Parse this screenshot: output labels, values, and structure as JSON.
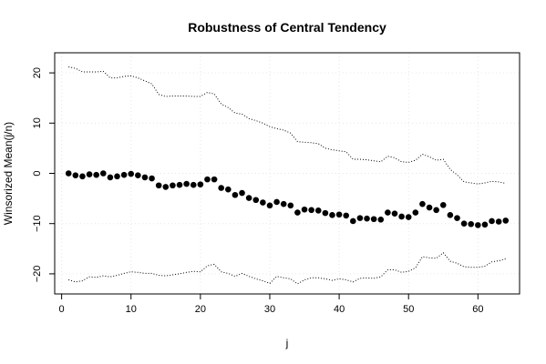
{
  "chart_data": {
    "type": "scatter",
    "title": "Robustness of Central Tendency",
    "xlabel": "j",
    "ylabel": "Winsorized Mean(j/n)",
    "xlim": [
      -1,
      66
    ],
    "ylim": [
      -24,
      24
    ],
    "x_ticks": [
      0,
      10,
      20,
      30,
      40,
      50,
      60
    ],
    "y_ticks": [
      -20,
      -10,
      0,
      10,
      20
    ],
    "grid": true,
    "series": [
      {
        "style": "points",
        "color": "#000000",
        "x": [
          1,
          2,
          3,
          4,
          5,
          6,
          7,
          8,
          9,
          10,
          11,
          12,
          13,
          14,
          15,
          16,
          17,
          18,
          19,
          20,
          21,
          22,
          23,
          24,
          25,
          26,
          27,
          28,
          29,
          30,
          31,
          32,
          33,
          34,
          35,
          36,
          37,
          38,
          39,
          40,
          41,
          42,
          43,
          44,
          45,
          46,
          47,
          48,
          49,
          50,
          51,
          52,
          53,
          54,
          55,
          56,
          57,
          58,
          59,
          60,
          61,
          62,
          63,
          64
        ],
        "y": [
          0.0,
          -0.4,
          -0.6,
          -0.2,
          -0.3,
          0.0,
          -0.8,
          -0.6,
          -0.3,
          -0.1,
          -0.4,
          -0.8,
          -1.0,
          -2.4,
          -2.7,
          -2.4,
          -2.3,
          -2.1,
          -2.3,
          -2.2,
          -1.2,
          -1.2,
          -2.9,
          -3.2,
          -4.3,
          -3.9,
          -4.9,
          -5.3,
          -5.8,
          -6.4,
          -5.7,
          -6.1,
          -6.4,
          -7.8,
          -7.2,
          -7.3,
          -7.4,
          -7.9,
          -8.3,
          -8.2,
          -8.4,
          -9.5,
          -8.9,
          -9.0,
          -9.1,
          -9.2,
          -7.8,
          -8.0,
          -8.6,
          -8.7,
          -7.8,
          -6.1,
          -6.8,
          -7.3,
          -6.3,
          -8.3,
          -8.9,
          -10.0,
          -10.1,
          -10.3,
          -10.2,
          -9.5,
          -9.6,
          -9.4
        ]
      },
      {
        "style": "dotted-line",
        "color": "#000000",
        "x": [
          1,
          2,
          3,
          4,
          5,
          6,
          7,
          8,
          9,
          10,
          11,
          12,
          13,
          14,
          15,
          16,
          17,
          18,
          19,
          20,
          21,
          22,
          23,
          24,
          25,
          26,
          27,
          28,
          29,
          30,
          31,
          32,
          33,
          34,
          35,
          36,
          37,
          38,
          39,
          40,
          41,
          42,
          43,
          44,
          45,
          46,
          47,
          48,
          49,
          50,
          51,
          52,
          53,
          54,
          55,
          56,
          57,
          58,
          59,
          60,
          61,
          62,
          63,
          64
        ],
        "y": [
          21.2,
          20.9,
          20.2,
          20.2,
          20.2,
          20.3,
          19.0,
          19.0,
          19.3,
          19.4,
          19.0,
          18.4,
          17.8,
          15.7,
          15.3,
          15.4,
          15.4,
          15.4,
          15.3,
          15.3,
          16.1,
          15.8,
          13.8,
          13.1,
          12.0,
          11.8,
          10.9,
          10.5,
          10.0,
          9.3,
          8.9,
          8.6,
          8.0,
          6.3,
          6.2,
          6.1,
          5.9,
          5.0,
          4.7,
          4.5,
          4.3,
          2.8,
          2.8,
          2.7,
          2.5,
          2.3,
          3.4,
          3.1,
          2.3,
          2.2,
          2.6,
          3.8,
          3.3,
          2.6,
          2.8,
          0.8,
          -0.3,
          -1.7,
          -1.9,
          -2.1,
          -1.9,
          -1.6,
          -1.7,
          -2.0
        ]
      },
      {
        "style": "dotted-line",
        "color": "#000000",
        "x": [
          1,
          2,
          3,
          4,
          5,
          6,
          7,
          8,
          9,
          10,
          11,
          12,
          13,
          14,
          15,
          16,
          17,
          18,
          19,
          20,
          21,
          22,
          23,
          24,
          25,
          26,
          27,
          28,
          29,
          30,
          31,
          32,
          33,
          34,
          35,
          36,
          37,
          38,
          39,
          40,
          41,
          42,
          43,
          44,
          45,
          46,
          47,
          48,
          49,
          50,
          51,
          52,
          53,
          54,
          55,
          56,
          57,
          58,
          59,
          60,
          61,
          62,
          63,
          64
        ],
        "y": [
          -21.2,
          -21.6,
          -21.4,
          -20.6,
          -20.7,
          -20.4,
          -20.6,
          -20.3,
          -19.9,
          -19.6,
          -19.7,
          -19.9,
          -19.9,
          -20.3,
          -20.4,
          -20.2,
          -20.0,
          -19.7,
          -19.5,
          -19.6,
          -18.4,
          -18.1,
          -19.6,
          -19.9,
          -20.5,
          -19.9,
          -20.5,
          -21.0,
          -21.4,
          -21.9,
          -20.5,
          -20.8,
          -21.0,
          -22.0,
          -21.2,
          -20.8,
          -20.8,
          -21.0,
          -21.3,
          -21.0,
          -21.2,
          -21.6,
          -20.9,
          -20.8,
          -20.9,
          -20.6,
          -19.2,
          -19.2,
          -19.7,
          -19.5,
          -18.8,
          -16.6,
          -16.8,
          -16.9,
          -15.8,
          -17.5,
          -17.9,
          -18.6,
          -18.7,
          -18.7,
          -18.5,
          -17.6,
          -17.4,
          -17.0
        ]
      }
    ]
  }
}
